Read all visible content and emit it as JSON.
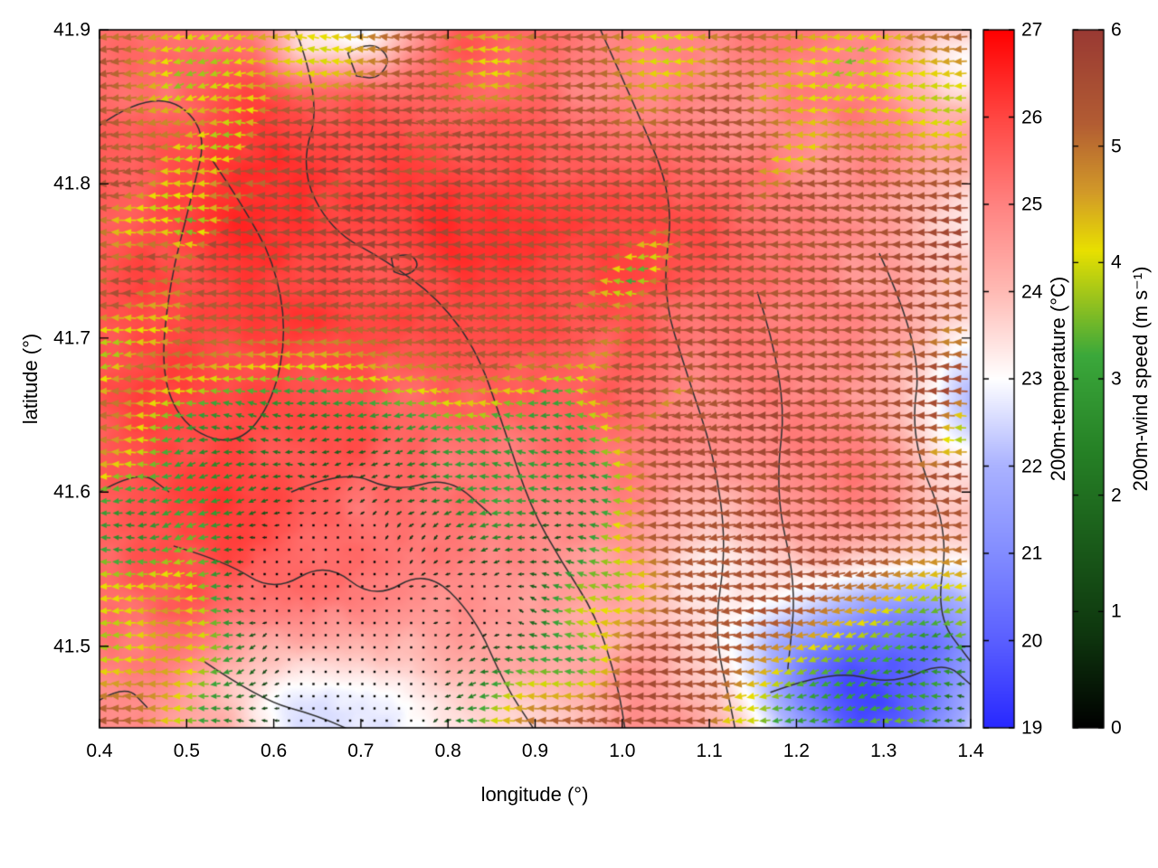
{
  "chart_data": {
    "type": "heatmap",
    "title": "",
    "xlabel": "longitude (°)",
    "ylabel": "latitude (°)",
    "xlim": [
      0.4,
      1.4
    ],
    "ylim": [
      41.447,
      41.9
    ],
    "xticks": [
      "0.4",
      "0.5",
      "0.6",
      "0.7",
      "0.8",
      "0.9",
      "1.0",
      "1.1",
      "1.2",
      "1.3",
      "1.4"
    ],
    "yticks": [
      "41.5",
      "41.6",
      "41.7",
      "41.8",
      "41.9"
    ],
    "grid": false,
    "overlays": [
      "200 m temperature shading",
      "200 m wind vector arrows colored by wind speed",
      "dark boundary/terrain contour lines"
    ],
    "wind_field": {
      "dominant_direction": "arrows point toward decreasing longitude (westward-pointing vectors / easterly flow)",
      "typical_speed_ms": 5.5,
      "calm_region": "near-calm pocket (0-2 m/s, black and dark-green arrows) around lon 0.55-0.95, lat 41.44-41.62",
      "high_speed_region": "dark brick-red arrows (~5-6 m/s) over most of the domain with yellow bands (~4 m/s)"
    },
    "temperature_field": {
      "warm_regions": "~24-26 °C (salmon/red shading) over most of the domain, warmest in the upper-left half",
      "cool_regions": "~20-22 °C (blue/lavender shading) in the lower-right corner and along the right edge; ~23 °C (white) bottom-centre"
    },
    "colorbars": [
      {
        "name": "temperature",
        "label": "200m-temperature (°C)",
        "min": 19,
        "max": 27,
        "ticks": [
          "27",
          "26",
          "25",
          "24",
          "23",
          "22",
          "21",
          "20",
          "19"
        ],
        "stops": [
          [
            19,
            "#2828ff"
          ],
          [
            20,
            "#5a5fff"
          ],
          [
            21,
            "#828cff"
          ],
          [
            22,
            "#aab2ff"
          ],
          [
            23,
            "#ffffff"
          ],
          [
            24,
            "#ffbab4"
          ],
          [
            25,
            "#ff8280"
          ],
          [
            26,
            "#ff4642"
          ],
          [
            27,
            "#ff0000"
          ]
        ]
      },
      {
        "name": "wind-speed",
        "label": "200m-wind speed (m s⁻¹)",
        "min": 0,
        "max": 6,
        "ticks": [
          "6",
          "5",
          "4",
          "3",
          "2",
          "1",
          "0"
        ],
        "stops": [
          [
            0,
            "#000000"
          ],
          [
            0.8,
            "#0e360e"
          ],
          [
            1.6,
            "#1a5c1a"
          ],
          [
            2.4,
            "#268226"
          ],
          [
            3.2,
            "#3ba83b"
          ],
          [
            3.7,
            "#9cc41c"
          ],
          [
            4.1,
            "#e8e000"
          ],
          [
            4.6,
            "#d29a28"
          ],
          [
            5.2,
            "#b25c33"
          ],
          [
            6,
            "#993933"
          ]
        ]
      }
    ],
    "contour_color": "#303030"
  }
}
